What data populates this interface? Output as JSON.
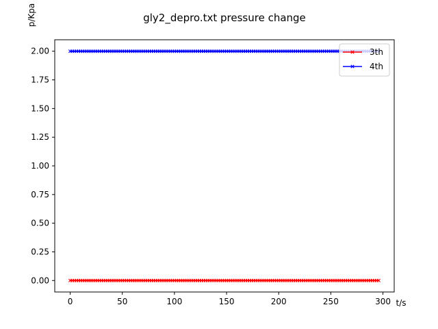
{
  "chart_data": {
    "type": "line",
    "title": "gly2_depro.txt pressure change",
    "xlabel": "t/s",
    "ylabel": "p/Kpa",
    "xlim": [
      -14.8,
      310.8
    ],
    "ylim": [
      -0.1,
      2.1
    ],
    "x_ticks": [
      0,
      50,
      100,
      150,
      200,
      250,
      300
    ],
    "x_tick_labels": [
      "0",
      "50",
      "100",
      "150",
      "200",
      "250",
      "300"
    ],
    "y_ticks": [
      0,
      0.25,
      0.5,
      0.75,
      1.0,
      1.25,
      1.5,
      1.75,
      2.0
    ],
    "y_tick_labels": [
      "0.00",
      "0.25",
      "0.50",
      "0.75",
      "1.00",
      "1.25",
      "1.50",
      "1.75",
      "2.00"
    ],
    "x_start": 0,
    "x_end": 296,
    "x_step": 2,
    "series": [
      {
        "name": "3th",
        "color": "#ff0000",
        "marker": "x",
        "value": 0.0
      },
      {
        "name": "4th",
        "color": "#0000ff",
        "marker": "x",
        "value": 2.0
      }
    ],
    "legend_position": "top-right",
    "grid": false
  }
}
